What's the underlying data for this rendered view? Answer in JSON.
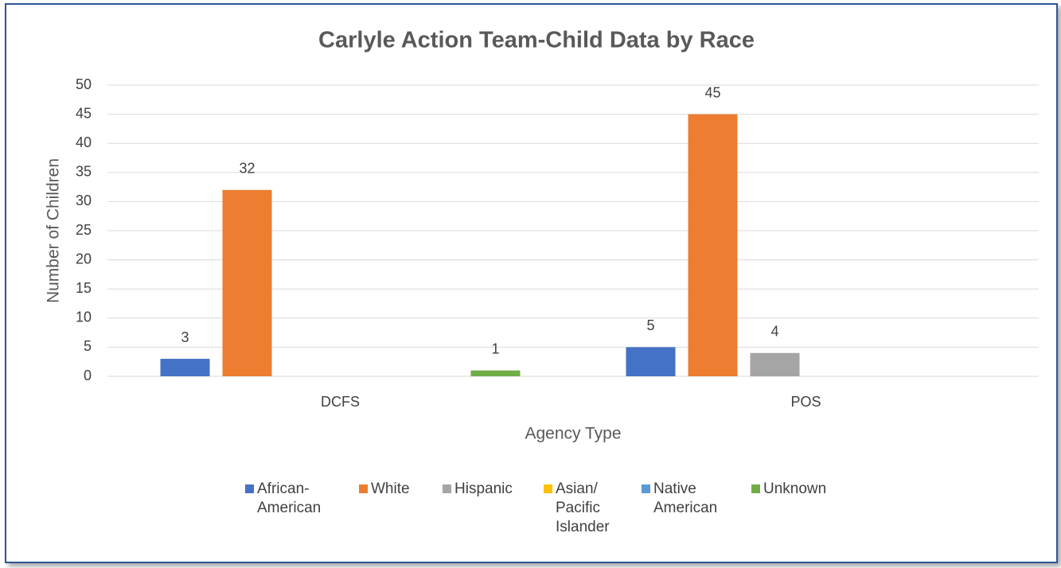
{
  "chart_data": {
    "type": "bar",
    "title": "Carlyle Action Team-Child Data by Race",
    "x_label": "Agency Type",
    "y_label": "Number of Children",
    "categories": [
      "DCFS",
      "POS"
    ],
    "series": [
      {
        "name": "African-American",
        "color": "#4472c4",
        "values": [
          3,
          5
        ]
      },
      {
        "name": "White",
        "color": "#ed7d31",
        "values": [
          32,
          45
        ]
      },
      {
        "name": "Hispanic",
        "color": "#a5a5a5",
        "values": [
          null,
          4
        ]
      },
      {
        "name": "Asian/ Pacific Islander",
        "color": "#ffc000",
        "values": [
          null,
          null
        ]
      },
      {
        "name": "Native American",
        "color": "#5b9bd5",
        "values": [
          null,
          null
        ]
      },
      {
        "name": "Unknown",
        "color": "#70ad47",
        "values": [
          1,
          null
        ]
      }
    ],
    "ylim": [
      0,
      50
    ],
    "yticks": [
      0,
      5,
      10,
      15,
      20,
      25,
      30,
      35,
      40,
      45,
      50
    ],
    "grid": true,
    "legend": "bottom"
  }
}
